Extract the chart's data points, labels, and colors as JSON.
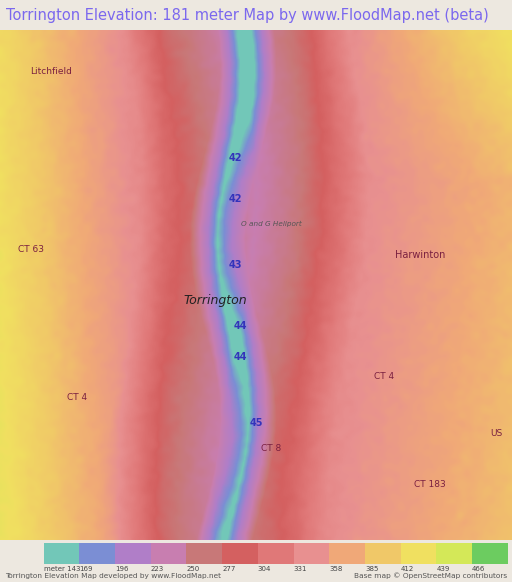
{
  "title": "Torrington Elevation: 181 meter Map by www.FloodMap.net (beta)",
  "title_color": "#7b68ee",
  "bg_color": "#ede8e0",
  "title_fontsize": 10.5,
  "colorbar_labels": [
    "meter 143",
    "169",
    "196",
    "223",
    "250",
    "277",
    "304",
    "331",
    "358",
    "385",
    "412",
    "439",
    "466"
  ],
  "colorbar_colors": [
    "#72c7b8",
    "#7b8ed4",
    "#b07ec8",
    "#c87eb0",
    "#c87878",
    "#d46060",
    "#e07878",
    "#e89090",
    "#f0a878",
    "#f0c868",
    "#f0e060",
    "#d4e858",
    "#6ccc60"
  ],
  "footer_left": "Torrington Elevation Map developed by www.FloodMap.net",
  "footer_right": "Base map © OpenStreetMap contributors",
  "elev_cmap_colors": [
    [
      0.0,
      "#72c7b8"
    ],
    [
      0.06,
      "#7b8ed4"
    ],
    [
      0.14,
      "#b07ec8"
    ],
    [
      0.24,
      "#c87eb0"
    ],
    [
      0.35,
      "#c87878"
    ],
    [
      0.42,
      "#d46060"
    ],
    [
      0.5,
      "#e07878"
    ],
    [
      0.58,
      "#e89090"
    ],
    [
      0.66,
      "#f0a878"
    ],
    [
      0.74,
      "#f0c868"
    ],
    [
      0.82,
      "#f0e060"
    ],
    [
      0.91,
      "#d4e858"
    ],
    [
      1.0,
      "#6ccc60"
    ]
  ]
}
